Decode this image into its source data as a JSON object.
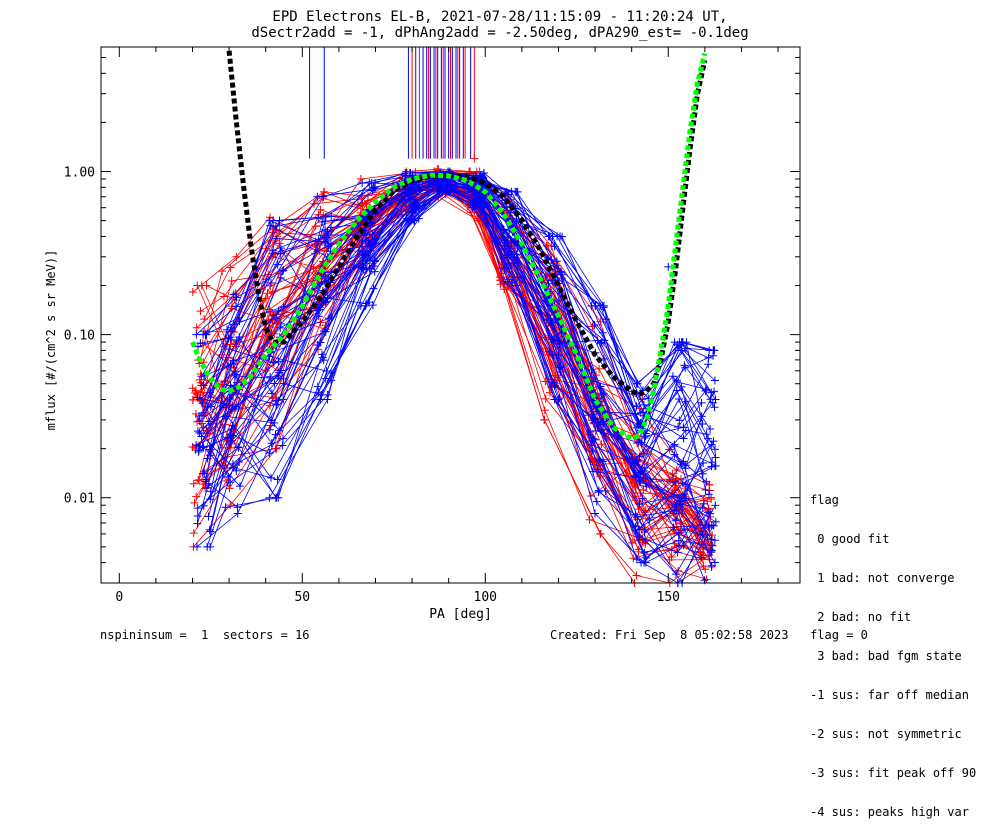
{
  "title_line1": "EPD Electrons EL-B, 2021-07-28/11:15:09 - 11:20:24 UT,",
  "title_line2": "dSectr2add = -1, dPhAng2add = -2.50deg, dPA290_est=  -0.1deg",
  "legend": {
    "header": "flag",
    "items": [
      " 0 good fit",
      " 1 bad: not converge",
      " 2 bad: no fit",
      " 3 bad: bad fgm state",
      "-1 sus: far off median",
      "-2 sus: not symmetric",
      "-3 sus: fit peak off 90",
      "-4 sus: peaks high var"
    ]
  },
  "footer": {
    "left": "nspininsum =  1  sectors = 16",
    "right": "Created: Fri Sep  8 05:02:58 2023   flag = 0"
  },
  "colors": {
    "red": "#ff0000",
    "blue": "#0000ff",
    "black": "#000000",
    "green": "#00ff00"
  },
  "chart_data": {
    "type": "line",
    "xlabel": "PA [deg]",
    "ylabel": "mflux [#/(cm^2 s sr MeV)]",
    "xlim": [
      -5,
      186
    ],
    "ylim": [
      0.003,
      5.8
    ],
    "yscale": "log",
    "xticks": [
      0,
      50,
      100,
      150
    ],
    "yticks": [
      0.01,
      0.1,
      1.0
    ],
    "ytick_labels": [
      "0.01",
      "0.10",
      "1.00"
    ],
    "grid": false,
    "fit_black": {
      "x": [
        30,
        32,
        34,
        36,
        38,
        40,
        42,
        45,
        50,
        55,
        60,
        65,
        70,
        75,
        80,
        85,
        90,
        95,
        100,
        105,
        110,
        115,
        120,
        125,
        130,
        135,
        140,
        142,
        144,
        146,
        148,
        150,
        152,
        154,
        156,
        158,
        160
      ],
      "y": [
        5.5,
        2.0,
        0.8,
        0.35,
        0.18,
        0.11,
        0.09,
        0.09,
        0.12,
        0.17,
        0.26,
        0.4,
        0.58,
        0.76,
        0.88,
        0.93,
        0.95,
        0.93,
        0.85,
        0.7,
        0.5,
        0.33,
        0.2,
        0.12,
        0.075,
        0.055,
        0.045,
        0.043,
        0.045,
        0.05,
        0.07,
        0.12,
        0.25,
        0.6,
        1.4,
        3.0,
        4.8
      ]
    },
    "fit_green": {
      "x": [
        20,
        22,
        24,
        26,
        28,
        30,
        33,
        36,
        40,
        45,
        50,
        55,
        60,
        65,
        70,
        75,
        80,
        85,
        90,
        95,
        100,
        105,
        110,
        115,
        120,
        125,
        130,
        135,
        140,
        142,
        144,
        146,
        148,
        150,
        152,
        154,
        156,
        158,
        160
      ],
      "y": [
        0.09,
        0.07,
        0.058,
        0.05,
        0.046,
        0.045,
        0.048,
        0.056,
        0.075,
        0.1,
        0.15,
        0.24,
        0.36,
        0.5,
        0.65,
        0.8,
        0.9,
        0.95,
        0.94,
        0.88,
        0.75,
        0.55,
        0.36,
        0.22,
        0.13,
        0.075,
        0.04,
        0.027,
        0.023,
        0.024,
        0.03,
        0.045,
        0.08,
        0.15,
        0.35,
        0.8,
        1.8,
        3.5,
        5.3
      ]
    },
    "red_series": {
      "x": [
        22,
        30,
        42,
        55,
        67,
        79,
        88,
        97,
        106,
        118,
        130,
        142,
        152,
        160
      ],
      "y_ranges": [
        [
          0.005,
          0.2
        ],
        [
          0.009,
          0.3
        ],
        [
          0.02,
          0.55
        ],
        [
          0.08,
          0.75
        ],
        [
          0.25,
          0.9
        ],
        [
          0.55,
          1.0
        ],
        [
          0.7,
          1.05
        ],
        [
          0.5,
          1.0
        ],
        [
          0.15,
          0.7
        ],
        [
          0.03,
          0.35
        ],
        [
          0.006,
          0.12
        ],
        [
          0.003,
          0.04
        ],
        [
          0.003,
          0.02
        ],
        [
          0.003,
          0.012
        ]
      ],
      "count": 45
    },
    "blue_series": {
      "x": [
        23,
        31,
        43,
        56,
        68,
        80,
        89,
        98,
        107,
        119,
        131,
        143,
        153,
        161
      ],
      "y_ranges": [
        [
          0.005,
          0.1
        ],
        [
          0.008,
          0.2
        ],
        [
          0.01,
          0.5
        ],
        [
          0.04,
          0.7
        ],
        [
          0.15,
          0.85
        ],
        [
          0.5,
          0.98
        ],
        [
          0.75,
          1.0
        ],
        [
          0.6,
          0.98
        ],
        [
          0.2,
          0.75
        ],
        [
          0.04,
          0.4
        ],
        [
          0.008,
          0.15
        ],
        [
          0.004,
          0.05
        ],
        [
          0.003,
          0.09
        ],
        [
          0.003,
          0.08
        ]
      ],
      "count": 55
    },
    "red_outliers": {
      "x": [
        97,
        39
      ],
      "y": [
        1.2,
        0.19
      ]
    },
    "blue_outliers": {
      "x": [
        150,
        108
      ],
      "y": [
        0.26,
        0.3
      ]
    },
    "spikes_blue": {
      "x": [
        52,
        56,
        79,
        81,
        83,
        84,
        85,
        86,
        87,
        88,
        89,
        90,
        91,
        92,
        93,
        94,
        96
      ],
      "y_bottom": 1.2
    },
    "spikes_red": {
      "x": [
        80,
        82,
        84.5,
        86.5,
        88.5,
        90.5,
        92.5,
        94.5,
        97
      ],
      "y_bottom": 1.2
    }
  }
}
